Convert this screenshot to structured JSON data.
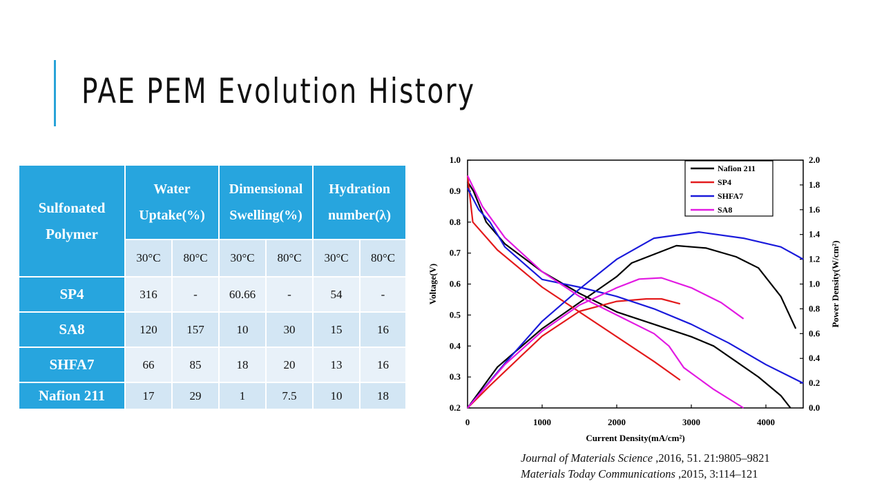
{
  "slide": {
    "title": "PAE PEM Evolution History"
  },
  "table": {
    "header_polymer": [
      "Sulfonated",
      "Polymer"
    ],
    "groups": [
      {
        "line1": "Water",
        "line2": "Uptake(%)"
      },
      {
        "line1": "Dimensional",
        "line2": "Swelling(%)"
      },
      {
        "line1": "Hydration",
        "line2": "number(λ)"
      }
    ],
    "temps": [
      "30°C",
      "80°C",
      "30°C",
      "80°C",
      "30°C",
      "80°C"
    ],
    "rows": [
      {
        "name": "SP4",
        "cells": [
          "316",
          "-",
          "60.66",
          "-",
          "54",
          "-"
        ]
      },
      {
        "name": "SA8",
        "cells": [
          "120",
          "157",
          "10",
          "30",
          "15",
          "16"
        ]
      },
      {
        "name": "SHFA7",
        "cells": [
          "66",
          "85",
          "18",
          "20",
          "13",
          "16"
        ]
      },
      {
        "name": "Nafion 211",
        "cells": [
          "17",
          "29",
          "1",
          "7.5",
          "10",
          "18"
        ]
      }
    ]
  },
  "references": [
    {
      "journal": "Journal of Materials Science",
      "details": " ,2016, 51. 21:9805–9821"
    },
    {
      "journal": "Materials Today Communications",
      "details": " ,2015, 3:114–121"
    }
  ],
  "chart_data": {
    "type": "line",
    "xlabel": "Current Density(mA/cm²)",
    "ylabel": "Voltage(V)",
    "y2label": "Power Density(W/cm²)",
    "xlim": [
      0,
      4500
    ],
    "ylim": [
      0.2,
      1.0
    ],
    "y2lim": [
      0.0,
      2.0
    ],
    "xticks": [
      "0",
      "1000",
      "2000",
      "3000",
      "4000"
    ],
    "yticks": [
      "0.2",
      "0.3",
      "0.4",
      "0.5",
      "0.6",
      "0.7",
      "0.8",
      "0.9",
      "1.0"
    ],
    "y2ticks": [
      "0.0",
      "0.2",
      "0.4",
      "0.6",
      "0.8",
      "1.0",
      "1.2",
      "1.4",
      "1.6",
      "1.8",
      "2.0"
    ],
    "legend_position": "top-right",
    "series": [
      {
        "name": "Nafion 211",
        "color": "#000000",
        "polarization": [
          [
            0,
            0.93
          ],
          [
            80,
            0.9
          ],
          [
            250,
            0.8
          ],
          [
            500,
            0.73
          ],
          [
            1000,
            0.64
          ],
          [
            1500,
            0.57
          ],
          [
            2000,
            0.51
          ],
          [
            2500,
            0.47
          ],
          [
            3000,
            0.43
          ],
          [
            3300,
            0.4
          ],
          [
            3600,
            0.35
          ],
          [
            3900,
            0.3
          ],
          [
            4200,
            0.24
          ],
          [
            4330,
            0.2
          ]
        ],
        "power": [
          [
            0,
            0.0
          ],
          [
            400,
            0.33
          ],
          [
            1000,
            0.64
          ],
          [
            1500,
            0.85
          ],
          [
            2000,
            1.06
          ],
          [
            2200,
            1.17
          ],
          [
            2800,
            1.31
          ],
          [
            3200,
            1.29
          ],
          [
            3600,
            1.22
          ],
          [
            3900,
            1.13
          ],
          [
            4200,
            0.9
          ],
          [
            4400,
            0.64
          ]
        ]
      },
      {
        "name": "SP4",
        "color": "#e31a1c",
        "polarization": [
          [
            0,
            0.95
          ],
          [
            70,
            0.8
          ],
          [
            400,
            0.71
          ],
          [
            1000,
            0.59
          ],
          [
            1500,
            0.51
          ],
          [
            2000,
            0.43
          ],
          [
            2500,
            0.35
          ],
          [
            2850,
            0.29
          ]
        ],
        "power": [
          [
            0,
            0.0
          ],
          [
            300,
            0.18
          ],
          [
            1000,
            0.58
          ],
          [
            1500,
            0.78
          ],
          [
            2000,
            0.86
          ],
          [
            2400,
            0.88
          ],
          [
            2600,
            0.88
          ],
          [
            2850,
            0.84
          ]
        ]
      },
      {
        "name": "SHFA7",
        "color": "#1a1adb",
        "polarization": [
          [
            0,
            0.91
          ],
          [
            150,
            0.84
          ],
          [
            300,
            0.8
          ],
          [
            500,
            0.72
          ],
          [
            1000,
            0.615
          ],
          [
            1500,
            0.59
          ],
          [
            2000,
            0.56
          ],
          [
            2500,
            0.52
          ],
          [
            3000,
            0.47
          ],
          [
            3500,
            0.41
          ],
          [
            4000,
            0.34
          ],
          [
            4500,
            0.28
          ]
        ],
        "power": [
          [
            0,
            0.0
          ],
          [
            500,
            0.36
          ],
          [
            1000,
            0.7
          ],
          [
            1500,
            0.96
          ],
          [
            2000,
            1.2
          ],
          [
            2500,
            1.37
          ],
          [
            3100,
            1.42
          ],
          [
            3700,
            1.37
          ],
          [
            4200,
            1.3
          ],
          [
            4500,
            1.2
          ]
        ]
      },
      {
        "name": "SA8",
        "color": "#e21ae2",
        "polarization": [
          [
            0,
            0.95
          ],
          [
            200,
            0.85
          ],
          [
            500,
            0.75
          ],
          [
            1000,
            0.64
          ],
          [
            1500,
            0.56
          ],
          [
            2000,
            0.5
          ],
          [
            2500,
            0.44
          ],
          [
            2700,
            0.4
          ],
          [
            2900,
            0.33
          ],
          [
            3300,
            0.26
          ],
          [
            3700,
            0.2
          ]
        ],
        "power": [
          [
            0,
            0.0
          ],
          [
            500,
            0.35
          ],
          [
            1000,
            0.62
          ],
          [
            1500,
            0.83
          ],
          [
            2000,
            0.97
          ],
          [
            2300,
            1.04
          ],
          [
            2600,
            1.05
          ],
          [
            3000,
            0.97
          ],
          [
            3400,
            0.85
          ],
          [
            3700,
            0.72
          ]
        ]
      }
    ]
  }
}
